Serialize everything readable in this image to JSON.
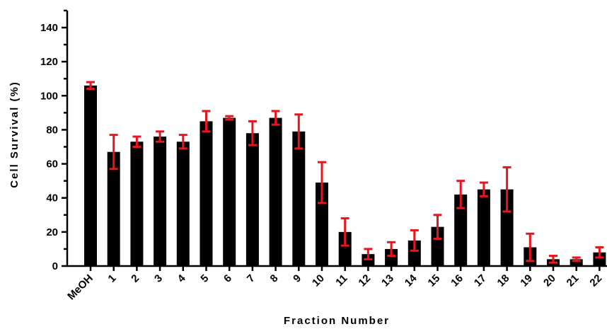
{
  "chart_data": {
    "type": "bar",
    "title": "",
    "xlabel": "Fraction Number",
    "ylabel": "Cell Survival (%)",
    "ylim": [
      0,
      150
    ],
    "yticks": [
      0,
      20,
      40,
      60,
      80,
      100,
      120,
      140
    ],
    "grid": false,
    "legend": "none",
    "categories": [
      "MeOH",
      "1",
      "2",
      "3",
      "4",
      "5",
      "6",
      "7",
      "8",
      "9",
      "10",
      "11",
      "12",
      "13",
      "14",
      "15",
      "16",
      "17",
      "18",
      "19",
      "20",
      "21",
      "22"
    ],
    "series": [
      {
        "values": [
          106,
          67,
          73,
          76,
          73,
          85,
          87,
          78,
          87,
          79,
          49,
          20,
          7,
          10,
          15,
          23,
          42,
          45,
          45,
          11,
          4,
          4,
          8
        ],
        "error": [
          2,
          10,
          3,
          3,
          4,
          6,
          1,
          7,
          4,
          10,
          12,
          8,
          3,
          4,
          6,
          7,
          8,
          4,
          13,
          8,
          2,
          1,
          3
        ]
      }
    ],
    "colors": {
      "bar": "#000000",
      "error_bar": "#e8141e",
      "axis": "#000000"
    }
  }
}
